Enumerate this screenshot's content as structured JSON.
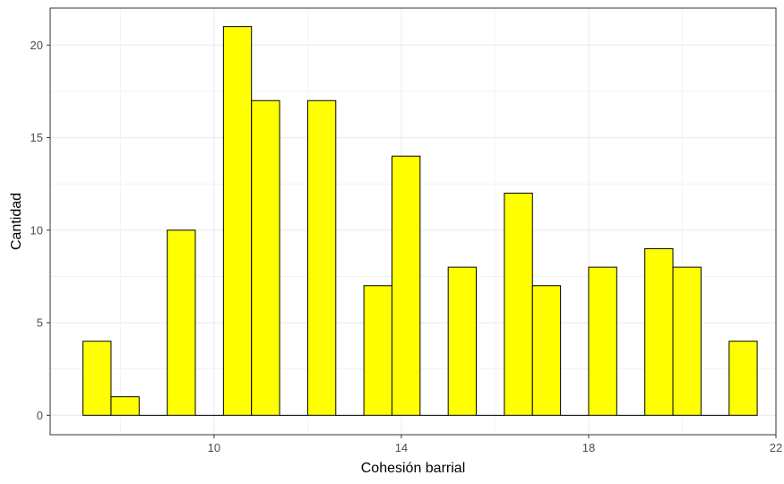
{
  "chart_data": {
    "type": "bar",
    "xlabel": "Cohesión barrial",
    "ylabel": "Cantidad",
    "xlim": [
      6.5,
      22
    ],
    "ylim": [
      -1.05,
      22
    ],
    "x_ticks": [
      10,
      14,
      18,
      22
    ],
    "y_ticks": [
      0,
      5,
      10,
      15,
      20
    ],
    "x_tick_labels": [
      "10",
      "14",
      "18",
      "22"
    ],
    "y_tick_labels": [
      "0",
      "5",
      "10",
      "15",
      "20"
    ],
    "bin_width": 0.6,
    "grid": true,
    "bars": [
      {
        "start": 7.2,
        "end": 7.8,
        "value": 4
      },
      {
        "start": 7.8,
        "end": 8.4,
        "value": 1
      },
      {
        "start": 8.4,
        "end": 9.0,
        "value": 0
      },
      {
        "start": 9.0,
        "end": 9.6,
        "value": 10
      },
      {
        "start": 9.6,
        "end": 10.2,
        "value": 0
      },
      {
        "start": 10.2,
        "end": 10.8,
        "value": 21
      },
      {
        "start": 10.8,
        "end": 11.4,
        "value": 17
      },
      {
        "start": 11.4,
        "end": 12.0,
        "value": 0
      },
      {
        "start": 12.0,
        "end": 12.6,
        "value": 17
      },
      {
        "start": 12.6,
        "end": 13.2,
        "value": 0
      },
      {
        "start": 13.2,
        "end": 13.8,
        "value": 7
      },
      {
        "start": 13.8,
        "end": 14.4,
        "value": 14
      },
      {
        "start": 14.4,
        "end": 15.0,
        "value": 0
      },
      {
        "start": 15.0,
        "end": 15.6,
        "value": 8
      },
      {
        "start": 15.6,
        "end": 16.2,
        "value": 0
      },
      {
        "start": 16.2,
        "end": 16.8,
        "value": 12
      },
      {
        "start": 16.8,
        "end": 17.4,
        "value": 7
      },
      {
        "start": 17.4,
        "end": 18.0,
        "value": 0
      },
      {
        "start": 18.0,
        "end": 18.6,
        "value": 8
      },
      {
        "start": 18.6,
        "end": 19.2,
        "value": 0
      },
      {
        "start": 19.2,
        "end": 19.8,
        "value": 9
      },
      {
        "start": 19.8,
        "end": 20.4,
        "value": 8
      },
      {
        "start": 20.4,
        "end": 21.0,
        "value": 0
      },
      {
        "start": 21.0,
        "end": 21.6,
        "value": 4
      }
    ],
    "colors": {
      "fill": "#ffff00",
      "stroke": "#000000",
      "grid": "#ebebeb",
      "panel_border": "#333333"
    }
  }
}
